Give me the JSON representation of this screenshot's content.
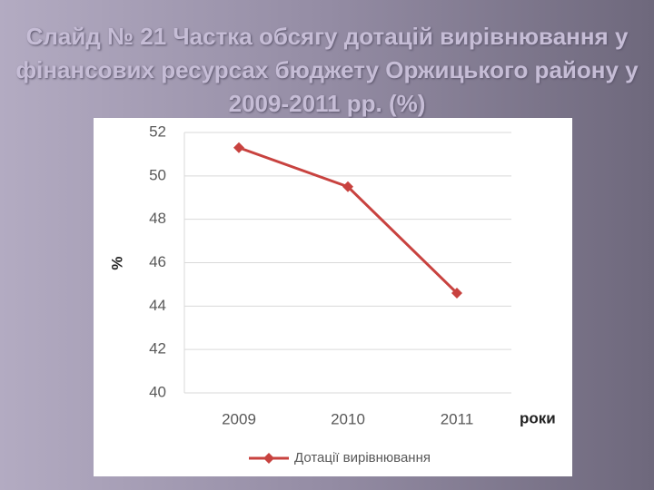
{
  "chart_data": {
    "type": "line",
    "title": "Слайд № 21 Частка обсягу дотацій вирівнювання у фінансових ресурсах бюджету Оржицького району у 2009-2011 рр. (%)",
    "categories": [
      "2009",
      "2010",
      "2011"
    ],
    "series": [
      {
        "name": "Дотації вирівнювання",
        "color": "#c8423f",
        "values": [
          51.3,
          49.5,
          44.6
        ]
      }
    ],
    "ylabel": "%",
    "xlabel": "роки",
    "ylim": [
      40,
      52
    ],
    "yticks": [
      40,
      42,
      44,
      46,
      48,
      50,
      52
    ],
    "grid": true,
    "legend": "bottom"
  }
}
